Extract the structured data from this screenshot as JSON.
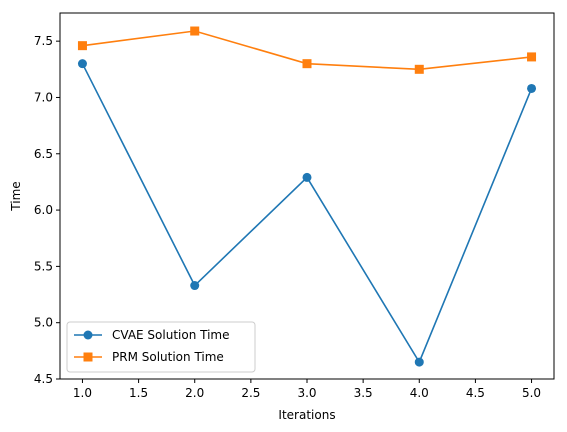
{
  "chart_data": {
    "type": "line",
    "title": "",
    "xlabel": "Iterations",
    "ylabel": "Time",
    "xlim": [
      0.8,
      5.2
    ],
    "ylim": [
      4.5,
      7.75
    ],
    "x_ticks": [
      "1.0",
      "1.5",
      "2.0",
      "2.5",
      "3.0",
      "3.5",
      "4.0",
      "4.5",
      "5.0"
    ],
    "y_ticks": [
      "4.5",
      "5.0",
      "5.5",
      "6.0",
      "6.5",
      "7.0",
      "7.5"
    ],
    "grid": false,
    "legend_position": "lower-left",
    "x": [
      1,
      2,
      3,
      4,
      5
    ],
    "series": [
      {
        "name": "CVAE Solution Time",
        "values": [
          7.3,
          5.33,
          6.29,
          4.65,
          7.08
        ],
        "color": "#1f77b4",
        "marker": "circle"
      },
      {
        "name": "PRM Solution Time",
        "values": [
          7.46,
          7.59,
          7.3,
          7.25,
          7.36
        ],
        "color": "#ff7f0e",
        "marker": "square"
      }
    ]
  }
}
